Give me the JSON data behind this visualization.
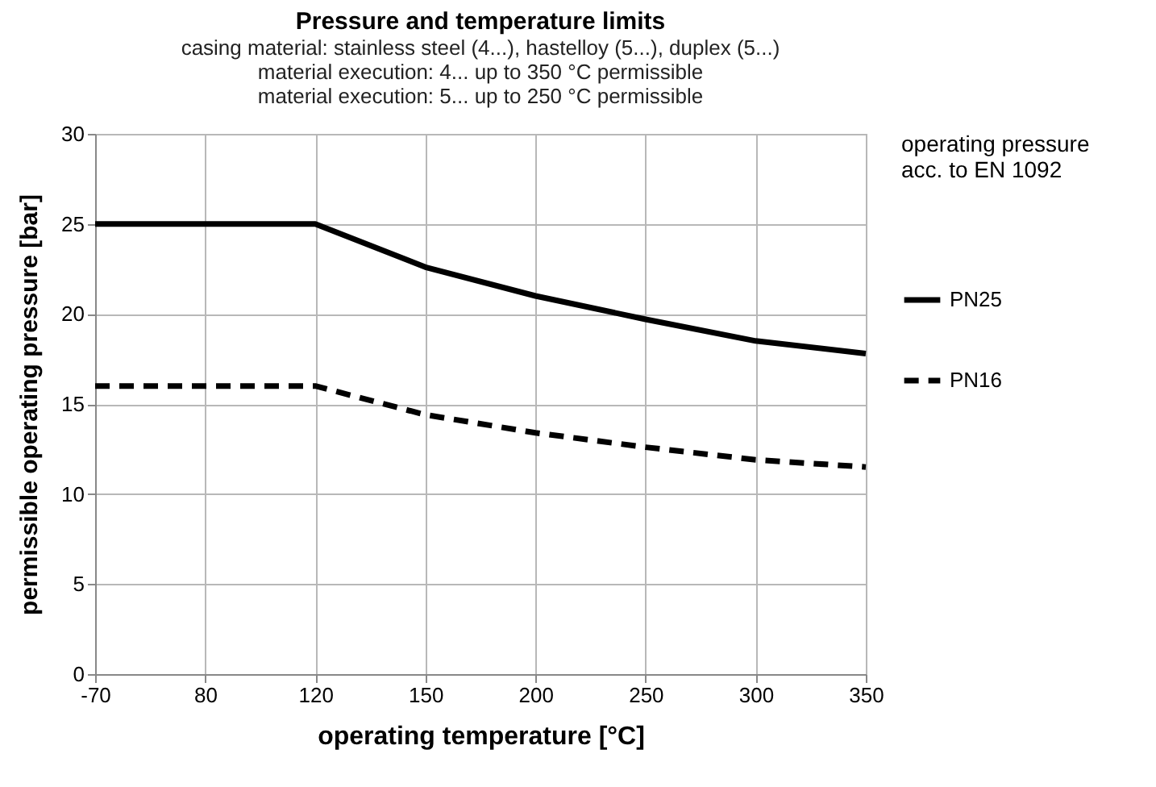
{
  "chart_data": {
    "type": "line",
    "title": "Pressure and temperature limits",
    "subtitle": "casing material: stainless steel (4...), hastelloy (5...), duplex (5...)\nmaterial execution: 4... up to 350 °C permissible\nmaterial execution: 5... up to 250 °C permissible",
    "xlabel": "operating temperature [°C]",
    "ylabel": "permissible operating pressure [bar]",
    "legend_title": "operating pressure\nacc. to EN 1092",
    "categories": [
      "-70",
      "80",
      "120",
      "150",
      "200",
      "250",
      "300",
      "350"
    ],
    "series": [
      {
        "name": "PN25",
        "color": "#000000",
        "line_style": "solid",
        "values": [
          25,
          25,
          25,
          22.6,
          21.0,
          19.7,
          18.5,
          17.8
        ]
      },
      {
        "name": "PN16",
        "color": "#000000",
        "line_style": "dashed",
        "values": [
          16,
          16,
          16,
          14.4,
          13.4,
          12.6,
          11.9,
          11.5
        ]
      }
    ],
    "ylim": [
      0,
      30
    ],
    "yticks": [
      0,
      5,
      10,
      15,
      20,
      25,
      30
    ],
    "grid": true,
    "legend": "right",
    "marker": "none"
  }
}
